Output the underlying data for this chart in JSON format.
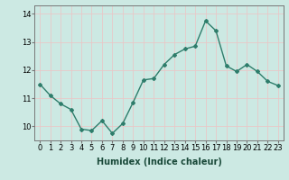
{
  "x": [
    0,
    1,
    2,
    3,
    4,
    5,
    6,
    7,
    8,
    9,
    10,
    11,
    12,
    13,
    14,
    15,
    16,
    17,
    18,
    19,
    20,
    21,
    22,
    23
  ],
  "y": [
    11.5,
    11.1,
    10.8,
    10.6,
    9.9,
    9.85,
    10.2,
    9.75,
    10.1,
    10.85,
    11.65,
    11.7,
    12.2,
    12.55,
    12.75,
    12.85,
    13.75,
    13.4,
    12.15,
    11.95,
    12.2,
    11.95,
    11.6,
    11.45
  ],
  "line_color": "#2e7d6b",
  "marker": "D",
  "marker_size": 2,
  "line_width": 1.0,
  "bg_color": "#cce9e3",
  "grid_color": "#e8f8f5",
  "xlabel": "Humidex (Indice chaleur)",
  "xlim": [
    -0.5,
    23.5
  ],
  "ylim": [
    9.5,
    14.3
  ],
  "yticks": [
    10,
    11,
    12,
    13,
    14
  ],
  "xticks": [
    0,
    1,
    2,
    3,
    4,
    5,
    6,
    7,
    8,
    9,
    10,
    11,
    12,
    13,
    14,
    15,
    16,
    17,
    18,
    19,
    20,
    21,
    22,
    23
  ],
  "xtick_labels": [
    "0",
    "1",
    "2",
    "3",
    "4",
    "5",
    "6",
    "7",
    "8",
    "9",
    "10",
    "11",
    "12",
    "13",
    "14",
    "15",
    "16",
    "17",
    "18",
    "19",
    "20",
    "21",
    "22",
    "23"
  ],
  "tick_fontsize": 6,
  "xlabel_fontsize": 7,
  "spine_color": "#777777"
}
